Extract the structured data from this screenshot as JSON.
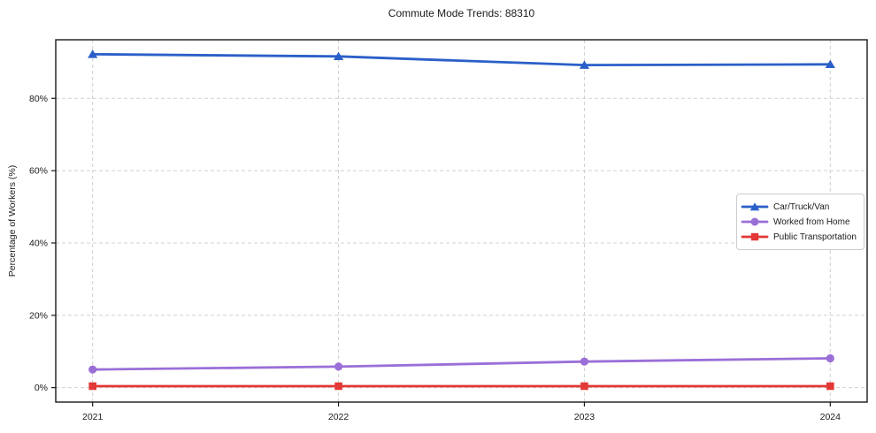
{
  "title": "Commute Mode Trends: 88310",
  "colors": {
    "background": "#ffffff",
    "axis": "#1a1a1a",
    "grid": "#d0d0d0",
    "text": "#1a1a1a",
    "legend_border": "#cccccc",
    "car_truck_van": "#2a5fc8",
    "worked_from_home": "#9a6fd8",
    "public_transportation": "#e23836"
  },
  "chart_data": {
    "type": "line",
    "title": "Commute Mode Trends: 88310",
    "xlabel": "",
    "ylabel": "Percentage of Workers (%)",
    "x": [
      2021,
      2022,
      2023,
      2024
    ],
    "x_tick_labels": [
      "2021",
      "2022",
      "2023",
      "2024"
    ],
    "y_ticks": [
      0,
      20,
      40,
      60,
      80
    ],
    "y_tick_labels": [
      "0%",
      "20%",
      "40%",
      "60%",
      "80%"
    ],
    "xlim": [
      2020.85,
      2024.15
    ],
    "ylim": [
      -4.0,
      96.2
    ],
    "grid": true,
    "grid_style": "dashed",
    "legend_position": "center-right",
    "series": [
      {
        "name": "Car/Truck/Van",
        "marker": "triangle",
        "color": "#2a5fc8",
        "values": [
          92.2,
          91.6,
          89.2,
          89.4
        ]
      },
      {
        "name": "Worked from Home",
        "marker": "circle",
        "color": "#9a6fd8",
        "values": [
          5.0,
          5.8,
          7.2,
          8.1
        ]
      },
      {
        "name": "Public Transportation",
        "marker": "square",
        "color": "#e23836",
        "values": [
          0.4,
          0.4,
          0.4,
          0.4
        ]
      }
    ]
  }
}
